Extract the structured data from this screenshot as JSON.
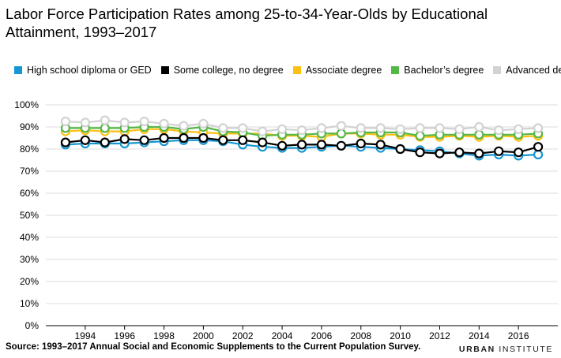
{
  "title": "Labor Force Participation Rates among 25-to-34-Year-Olds by Educational Attainment, 1993–2017",
  "footer": {
    "source": "Source: 1993–2017 Annual Social and Economic Supplements to the Current Population Survey.",
    "brand_bold": "URBAN",
    "brand_rest": " INSTITUTE"
  },
  "chart_data": {
    "type": "line",
    "x": [
      1993,
      1994,
      1995,
      1996,
      1997,
      1998,
      1999,
      2000,
      2001,
      2002,
      2003,
      2004,
      2005,
      2006,
      2007,
      2008,
      2009,
      2010,
      2011,
      2012,
      2013,
      2014,
      2015,
      2016,
      2017
    ],
    "x_ticks": [
      "1994",
      "1996",
      "1998",
      "2000",
      "2002",
      "2004",
      "2006",
      "2008",
      "2010",
      "2012",
      "2014",
      "2016"
    ],
    "y_ticks": [
      "0%",
      "10%",
      "20%",
      "30%",
      "40%",
      "50%",
      "60%",
      "70%",
      "80%",
      "90%",
      "100%"
    ],
    "ylim": [
      0,
      100
    ],
    "grid": "horizontal",
    "legend_position": "top",
    "series": [
      {
        "name": "High school diploma or GED",
        "color": "#1696d2",
        "values": [
          82,
          82.5,
          82.5,
          82.5,
          83,
          83.5,
          84,
          84,
          83.5,
          82,
          81,
          80.5,
          80.5,
          81,
          81.5,
          81,
          80.5,
          80,
          79.5,
          79,
          78,
          77,
          77.5,
          77,
          77.5
        ]
      },
      {
        "name": "Associate degree",
        "color": "#fdbf11",
        "values": [
          88,
          88.5,
          88,
          88,
          89,
          89,
          88,
          87.5,
          87,
          87,
          87,
          86,
          86,
          85.5,
          87,
          87,
          86.5,
          86.5,
          85.5,
          85.5,
          86,
          85.5,
          86,
          85.5,
          86
        ]
      },
      {
        "name": "Bachelor’s degree",
        "color": "#55b748",
        "values": [
          89.5,
          89.5,
          89.5,
          89.5,
          90,
          90,
          89,
          90,
          88,
          87.5,
          86,
          86.5,
          86.5,
          87,
          87,
          87.5,
          87.5,
          87.5,
          86,
          86.5,
          86.5,
          86.5,
          86.5,
          86.5,
          87
        ]
      },
      {
        "name": "Advanced degree",
        "color": "#d2d2d2",
        "values": [
          92.5,
          92,
          93,
          92,
          92.5,
          91.5,
          90.5,
          91.5,
          89.5,
          89.5,
          88,
          89,
          88.5,
          89.5,
          90.5,
          89.5,
          89.5,
          89,
          89.5,
          89.5,
          89,
          90,
          88.5,
          89,
          89.5
        ]
      },
      {
        "name": "Some college, no degree",
        "color": "#000000",
        "values": [
          83,
          84,
          83,
          84.5,
          84,
          85,
          85,
          85,
          84,
          84,
          83,
          81.5,
          82,
          82,
          81.5,
          82.5,
          82,
          80,
          78.5,
          78,
          78.5,
          78,
          79,
          78.5,
          81
        ]
      }
    ]
  }
}
